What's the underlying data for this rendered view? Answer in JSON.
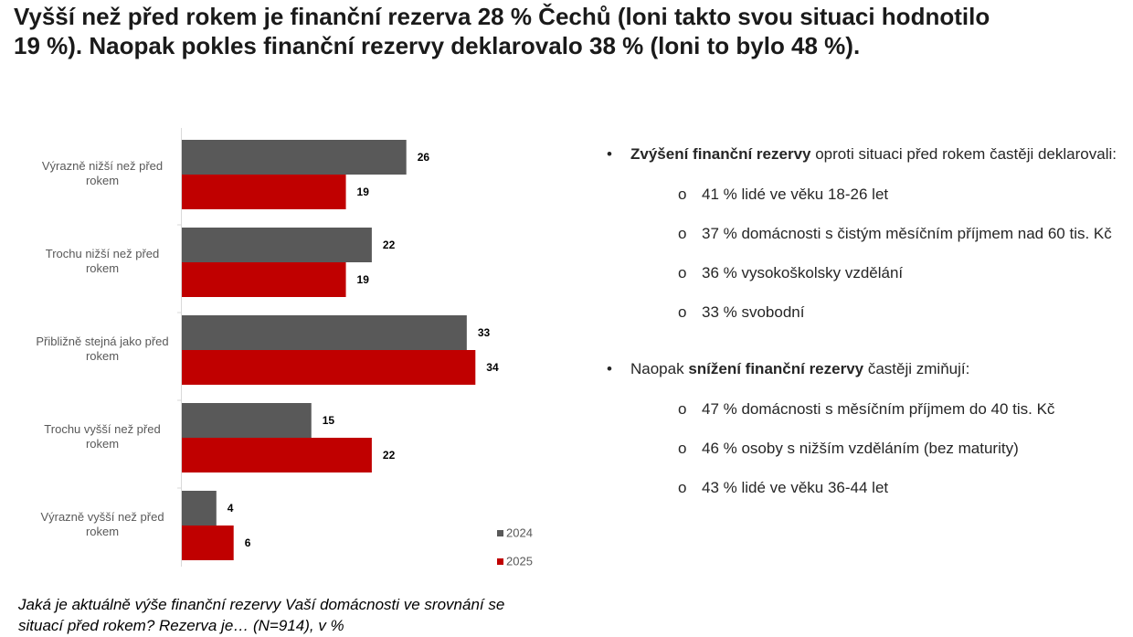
{
  "title": "Vyšší než před rokem je finanční rezerva 28 % Čechů (loni takto svou situaci hodnotilo 19 %). Naopak pokles finanční rezervy deklarovalo 38 % (loni to bylo 48 %).",
  "question": "Jaká je aktuálně výše finanční rezervy Vaší domácnosti ve srovnání se situací před rokem? Rezerva je… (N=914), v %",
  "bullets": {
    "b1": {
      "bold": "Zvýšení finanční rezervy",
      "rest": " oproti situaci před rokem častěji deklarovali:",
      "items": [
        "41 % lidé ve věku 18-26 let",
        "37 % domácnosti s čistým měsíčním příjmem nad 60 tis. Kč",
        "36 % vysokoškolsky vzdělání",
        "33 % svobodní"
      ]
    },
    "b2": {
      "pre": "Naopak ",
      "bold": "snížení finanční rezervy",
      "rest": " častěji zmiňují:",
      "items": [
        "47 % domácnosti s měsíčním příjmem do 40 tis. Kč",
        "46 % osoby s nižším vzděláním (bez maturity)",
        "43 % lidé ve věku 36-44 let"
      ]
    },
    "bullet_glyph": "•",
    "sub_glyph": "o"
  },
  "chart_data": {
    "type": "bar",
    "orientation": "horizontal",
    "categories": [
      "Výrazně nižší než před rokem",
      "Trochu nižší než před rokem",
      "Přibližně stejná jako před rokem",
      "Trochu vyšší než před rokem",
      "Výrazně vyšší než před rokem"
    ],
    "category_lines": [
      [
        "Výrazně nižší než před",
        "rokem"
      ],
      [
        "Trochu nižší než před",
        "rokem"
      ],
      [
        "Přibližně stejná jako před",
        "rokem"
      ],
      [
        "Trochu vyšší než před",
        "rokem"
      ],
      [
        "Výrazně vyšší než před",
        "rokem"
      ]
    ],
    "series": [
      {
        "name": "2024",
        "color": "#595959",
        "values": [
          26,
          22,
          33,
          15,
          4
        ]
      },
      {
        "name": "2025",
        "color": "#c00000",
        "values": [
          19,
          19,
          34,
          22,
          6
        ]
      }
    ],
    "xlim": [
      0,
      40
    ],
    "grid": false,
    "legend_position": "bottom-right",
    "data_labels": true
  }
}
